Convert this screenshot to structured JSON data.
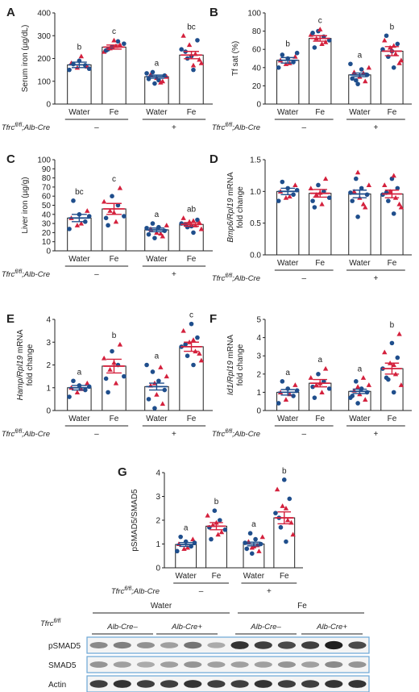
{
  "colors": {
    "water": "#1f4e8c",
    "fe": "#d4213d",
    "axis": "#222222",
    "bar_fill": "#ffffff",
    "blot_frame": "#6aa6d6"
  },
  "genotype_label_base": "Tfrc",
  "genotype_label_sup": "fl/fl",
  "genotype_label_rest": ";Alb-Cre",
  "sign_minus": "–",
  "sign_plus": "+",
  "chart_data": [
    {
      "panel": "A",
      "type": "bar",
      "ylabel": "Serum iron (µg/dL)",
      "ylim": [
        0,
        400
      ],
      "yticks": [
        0,
        100,
        200,
        300,
        400
      ],
      "categories": [
        "Water",
        "Fe",
        "Water",
        "Fe"
      ],
      "groups": [
        "–",
        "+"
      ],
      "values": [
        172,
        250,
        120,
        215
      ],
      "sem": [
        12,
        9,
        7,
        16
      ],
      "letters": [
        "b",
        "c",
        "a",
        "bc"
      ],
      "points": [
        [
          150,
          160,
          170,
          180,
          190,
          165,
          175,
          210,
          155
        ],
        [
          240,
          255,
          265,
          245,
          275,
          230,
          250,
          260,
          235,
          280
        ],
        [
          90,
          100,
          110,
          115,
          125,
          130,
          105,
          120,
          140,
          95,
          135
        ],
        [
          150,
          180,
          200,
          220,
          240,
          260,
          280,
          300,
          210,
          195,
          230,
          170
        ]
      ]
    },
    {
      "panel": "B",
      "type": "bar",
      "ylabel": "Tf sat (%)",
      "ylim": [
        0,
        100
      ],
      "yticks": [
        0,
        20,
        40,
        60,
        80,
        100
      ],
      "categories": [
        "Water",
        "Fe",
        "Water",
        "Fe"
      ],
      "groups": [
        "–",
        "+"
      ],
      "values": [
        48,
        72,
        32,
        58
      ],
      "sem": [
        3,
        3,
        2,
        5
      ],
      "letters": [
        "b",
        "c",
        "a",
        "b"
      ],
      "points": [
        [
          40,
          44,
          46,
          48,
          50,
          52,
          54,
          45,
          56
        ],
        [
          62,
          66,
          70,
          72,
          74,
          76,
          80,
          68,
          78,
          82
        ],
        [
          22,
          25,
          28,
          30,
          32,
          35,
          38,
          40,
          26,
          34,
          44
        ],
        [
          40,
          48,
          52,
          55,
          60,
          62,
          66,
          70,
          58,
          45,
          75,
          64
        ]
      ]
    },
    {
      "panel": "C",
      "type": "bar",
      "ylabel": "Liver iron (µg/g)",
      "ylim": [
        0,
        100
      ],
      "yticks": [
        0,
        10,
        20,
        30,
        40,
        50,
        60,
        70,
        80,
        90,
        100
      ],
      "categories": [
        "Water",
        "Fe",
        "Water",
        "Fe"
      ],
      "groups": [
        "–",
        "+"
      ],
      "values": [
        36,
        46,
        23,
        29
      ],
      "sem": [
        4,
        6,
        2,
        2
      ],
      "letters": [
        "bc",
        "c",
        "a",
        "ab"
      ],
      "points": [
        [
          24,
          28,
          32,
          36,
          40,
          44,
          55,
          30,
          38
        ],
        [
          28,
          32,
          38,
          44,
          50,
          54,
          60,
          69,
          36,
          42
        ],
        [
          14,
          16,
          18,
          20,
          22,
          24,
          26,
          28,
          30,
          19,
          25
        ],
        [
          20,
          24,
          26,
          28,
          30,
          32,
          34,
          36,
          27,
          31,
          29,
          33
        ]
      ]
    },
    {
      "panel": "D",
      "type": "bar",
      "ylabel_gene": "Bmp6/Rpl19",
      "ylabel_rest": " mRNA",
      "ylabel2": "fold change",
      "ylim": [
        0,
        1.5
      ],
      "yticks": [
        0,
        0.5,
        1.0,
        1.5
      ],
      "categories": [
        "Water",
        "Fe",
        "Water",
        "Fe"
      ],
      "groups": [
        "–",
        "+"
      ],
      "values": [
        1.0,
        0.97,
        0.96,
        0.96
      ],
      "sem": [
        0.05,
        0.06,
        0.06,
        0.06
      ],
      "letters": [
        "",
        "",
        "",
        ""
      ],
      "points": [
        [
          0.85,
          0.9,
          0.95,
          1.0,
          1.05,
          1.1,
          1.15,
          0.92,
          1.02
        ],
        [
          0.75,
          0.8,
          0.9,
          0.95,
          1.0,
          1.05,
          1.1,
          1.2,
          0.85,
          0.98
        ],
        [
          0.6,
          0.75,
          0.85,
          0.9,
          0.95,
          1.0,
          1.05,
          1.1,
          1.2,
          0.8,
          0.98,
          1.3
        ],
        [
          0.65,
          0.75,
          0.85,
          0.9,
          0.95,
          1.0,
          1.05,
          1.1,
          1.2,
          0.8,
          0.98,
          1.25
        ]
      ]
    },
    {
      "panel": "E",
      "type": "bar",
      "ylabel_gene": "Hamp/Rpl19",
      "ylabel_rest": " mRNA",
      "ylabel2": "fold change",
      "ylim": [
        0,
        4
      ],
      "yticks": [
        0,
        1,
        2,
        3,
        4
      ],
      "categories": [
        "Water",
        "Fe",
        "Water",
        "Fe"
      ],
      "groups": [
        "–",
        "+"
      ],
      "values": [
        1.0,
        1.95,
        1.05,
        2.8
      ],
      "sem": [
        0.1,
        0.3,
        0.15,
        0.2
      ],
      "letters": [
        "a",
        "b",
        "a",
        "c"
      ],
      "points": [
        [
          0.6,
          0.8,
          0.9,
          1.0,
          1.1,
          1.2,
          1.3,
          0.95,
          1.05
        ],
        [
          0.8,
          1.2,
          1.5,
          1.8,
          2.0,
          2.3,
          2.6,
          2.9,
          1.4,
          2.1
        ],
        [
          0.1,
          0.3,
          0.5,
          0.7,
          0.9,
          1.1,
          1.3,
          1.5,
          1.7,
          1.9,
          2.0,
          1.2
        ],
        [
          2.0,
          2.2,
          2.4,
          2.6,
          2.8,
          3.0,
          3.2,
          3.5,
          3.8,
          2.5,
          2.9,
          3.1
        ]
      ]
    },
    {
      "panel": "F",
      "type": "bar",
      "ylabel_gene": "Id1/Rpl19",
      "ylabel_rest": " mRNA",
      "ylabel2": "fold change",
      "ylim": [
        0,
        5
      ],
      "yticks": [
        0,
        1,
        2,
        3,
        4,
        5
      ],
      "categories": [
        "Water",
        "Fe",
        "Water",
        "Fe"
      ],
      "groups": [
        "–",
        "+"
      ],
      "values": [
        1.0,
        1.5,
        1.05,
        2.3
      ],
      "sem": [
        0.15,
        0.2,
        0.12,
        0.3
      ],
      "letters": [
        "a",
        "a",
        "a",
        "b"
      ],
      "points": [
        [
          0.4,
          0.6,
          0.8,
          1.0,
          1.2,
          1.4,
          1.6,
          0.9,
          1.1
        ],
        [
          0.7,
          1.0,
          1.2,
          1.4,
          1.6,
          1.8,
          2.0,
          2.3,
          1.3,
          1.5
        ],
        [
          0.4,
          0.6,
          0.8,
          0.9,
          1.0,
          1.1,
          1.2,
          1.4,
          1.6,
          1.8,
          0.7,
          1.3
        ],
        [
          1.0,
          1.4,
          1.7,
          2.0,
          2.3,
          2.6,
          2.9,
          3.2,
          3.7,
          4.2,
          1.8,
          2.5
        ]
      ]
    },
    {
      "panel": "G",
      "type": "bar",
      "ylabel": "pSMAD5/SMAD5",
      "ylim": [
        0,
        4
      ],
      "yticks": [
        0,
        1,
        2,
        3,
        4
      ],
      "categories": [
        "Water",
        "Fe",
        "Water",
        "Fe"
      ],
      "groups": [
        "–",
        "+"
      ],
      "values": [
        0.98,
        1.75,
        1.0,
        2.1
      ],
      "sem": [
        0.08,
        0.15,
        0.08,
        0.25
      ],
      "letters": [
        "a",
        "b",
        "a",
        "b"
      ],
      "points": [
        [
          0.7,
          0.8,
          0.9,
          1.0,
          1.1,
          1.2,
          1.3,
          0.85,
          1.05
        ],
        [
          1.2,
          1.4,
          1.6,
          1.8,
          2.0,
          2.2,
          2.4,
          1.5,
          1.7,
          1.9
        ],
        [
          0.6,
          0.7,
          0.8,
          0.9,
          1.0,
          1.1,
          1.2,
          1.3,
          1.45,
          0.95,
          1.05,
          0.85
        ],
        [
          1.1,
          1.4,
          1.7,
          2.0,
          2.3,
          2.6,
          2.9,
          3.3,
          3.7,
          1.9,
          2.1,
          2.5
        ]
      ]
    }
  ],
  "blot": {
    "group_water": "Water",
    "group_fe": "Fe",
    "row_label_base": "Tfrc",
    "row_label_sup": "fl/fl",
    "subgroups": [
      "Alb-Cre–",
      "Alb-Cre+",
      "Alb-Cre–",
      "Alb-Cre+"
    ],
    "rows": [
      "pSMAD5",
      "SMAD5",
      "Actin"
    ],
    "intensity": {
      "pSMAD5": [
        0.45,
        0.5,
        0.42,
        0.35,
        0.55,
        0.3,
        0.85,
        0.8,
        0.75,
        0.8,
        0.95,
        0.75
      ],
      "SMAD5": [
        0.4,
        0.35,
        0.3,
        0.35,
        0.4,
        0.35,
        0.35,
        0.35,
        0.4,
        0.35,
        0.45,
        0.4
      ],
      "Actin": [
        0.8,
        0.85,
        0.8,
        0.8,
        0.85,
        0.8,
        0.8,
        0.85,
        0.8,
        0.8,
        0.85,
        0.85
      ]
    }
  }
}
